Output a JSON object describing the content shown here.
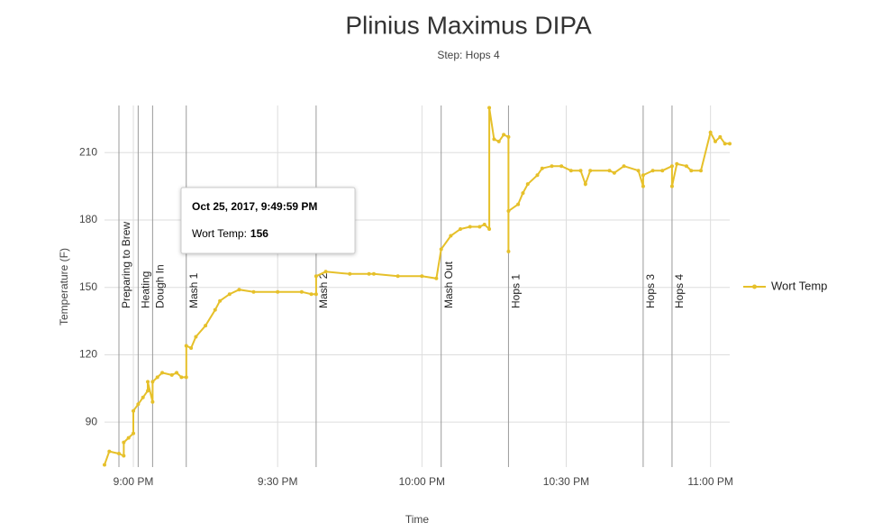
{
  "chart_data": {
    "type": "line",
    "title": "Plinius Maximus DIPA",
    "subtitle": "Step: Hops 4",
    "x_label": "Time",
    "y_label": "Temperature (F)",
    "xlim": [
      "8:54 PM",
      "11:04 PM"
    ],
    "xticks": [
      "9:00 PM",
      "9:30 PM",
      "10:00 PM",
      "10:30 PM",
      "11:00 PM"
    ],
    "ylim": [
      70,
      231
    ],
    "yticks": [
      90,
      120,
      150,
      180,
      210
    ],
    "grid": true,
    "legend": "right",
    "x": [
      "8:54 PM",
      "8:55 PM",
      "8:57 PM",
      "8:58 PM",
      "8:58 PM",
      "8:59 PM",
      "9:00 PM",
      "9:00 PM",
      "9:01 PM",
      "9:02 PM",
      "9:03 PM",
      "9:03 PM",
      "9:04 PM",
      "9:04 PM",
      "9:05 PM",
      "9:06 PM",
      "9:08 PM",
      "9:09 PM",
      "9:10 PM",
      "9:11 PM",
      "9:11 PM",
      "9:12 PM",
      "9:13 PM",
      "9:15 PM",
      "9:17 PM",
      "9:18 PM",
      "9:20 PM",
      "9:22 PM",
      "9:25 PM",
      "9:30 PM",
      "9:35 PM",
      "9:37 PM",
      "9:38 PM",
      "9:38 PM",
      "9:40 PM",
      "9:45 PM",
      "9:49 PM",
      "9:50 PM",
      "9:55 PM",
      "10:00 PM",
      "10:03 PM",
      "10:04 PM",
      "10:06 PM",
      "10:08 PM",
      "10:10 PM",
      "10:12 PM",
      "10:13 PM",
      "10:14 PM",
      "10:14 PM",
      "10:15 PM",
      "10:16 PM",
      "10:17 PM",
      "10:18 PM",
      "10:18 PM",
      "10:18 PM",
      "10:20 PM",
      "10:21 PM",
      "10:22 PM",
      "10:24 PM",
      "10:25 PM",
      "10:27 PM",
      "10:29 PM",
      "10:31 PM",
      "10:33 PM",
      "10:34 PM",
      "10:35 PM",
      "10:39 PM",
      "10:40 PM",
      "10:42 PM",
      "10:45 PM",
      "10:46 PM",
      "10:46 PM",
      "10:48 PM",
      "10:50 PM",
      "10:52 PM",
      "10:52 PM",
      "10:53 PM",
      "10:55 PM",
      "10:56 PM",
      "10:58 PM",
      "11:00 PM",
      "11:01 PM",
      "11:02 PM",
      "11:03 PM",
      "11:04 PM"
    ],
    "series": [
      {
        "name": "Wort Temp",
        "color": "#e6c02a",
        "values": [
          71,
          77,
          76,
          75,
          81,
          83,
          85,
          95,
          98,
          101,
          104,
          108,
          99,
          108,
          110,
          112,
          111,
          112,
          110,
          110,
          124,
          123,
          128,
          133,
          140,
          144,
          147,
          149,
          148,
          148,
          148,
          147,
          147,
          155,
          157,
          156,
          156,
          156,
          155,
          155,
          154,
          167,
          173,
          176,
          177,
          177,
          178,
          176,
          230,
          216,
          215,
          218,
          217,
          166,
          184,
          187,
          192,
          196,
          200,
          203,
          204,
          204,
          202,
          202,
          196,
          202,
          202,
          201,
          204,
          202,
          195,
          200,
          202,
          202,
          204,
          195,
          205,
          204,
          202,
          202,
          219,
          215,
          217,
          214,
          214
        ]
      }
    ],
    "annotations": [
      {
        "label": "Preparing to Brew",
        "x": "8:57 PM"
      },
      {
        "label": "Heating",
        "x": "9:01 PM"
      },
      {
        "label": "Dough In",
        "x": "9:04 PM"
      },
      {
        "label": "Mash 1",
        "x": "9:11 PM"
      },
      {
        "label": "Mash 2",
        "x": "9:38 PM"
      },
      {
        "label": "Mash Out",
        "x": "10:04 PM"
      },
      {
        "label": "Hops 1",
        "x": "10:18 PM"
      },
      {
        "label": "Hops 3",
        "x": "10:46 PM"
      },
      {
        "label": "Hops 4",
        "x": "10:52 PM"
      }
    ],
    "tooltip": {
      "title": "Oct 25, 2017, 9:49:59 PM",
      "label": "Wort Temp:",
      "value": 156
    }
  }
}
